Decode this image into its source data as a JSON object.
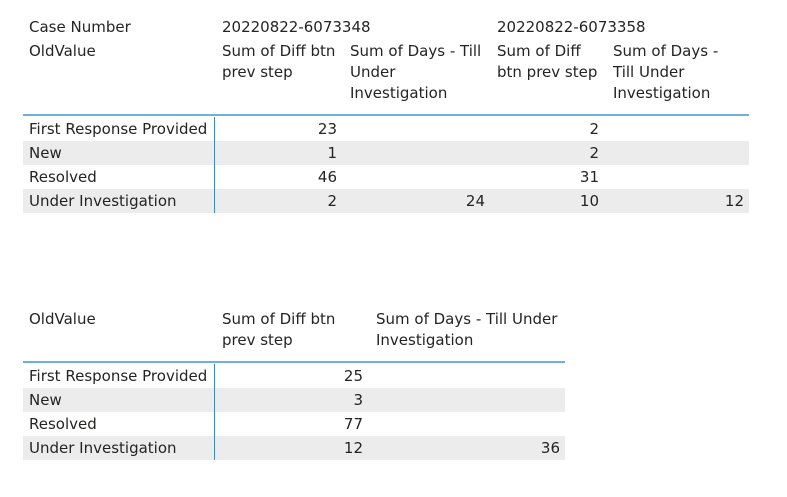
{
  "matrix": {
    "corner_col_label": "Case Number",
    "corner_row_label": "OldValue",
    "cases": [
      {
        "case_number": "20220822-6073348",
        "measures": [
          "Sum of Diff btn prev step",
          "Sum of Days - Till Under Investigation"
        ]
      },
      {
        "case_number": "20220822-6073358",
        "measures": [
          "Sum of Diff btn prev step",
          "Sum of Days - Till Under Investigation"
        ]
      }
    ],
    "rows": [
      {
        "label": "First Response Provided",
        "values": [
          "23",
          "",
          "2",
          ""
        ]
      },
      {
        "label": "New",
        "values": [
          "1",
          "",
          "2",
          ""
        ]
      },
      {
        "label": "Resolved",
        "values": [
          "46",
          "",
          "31",
          ""
        ]
      },
      {
        "label": "Under Investigation",
        "values": [
          "2",
          "24",
          "10",
          "12"
        ]
      }
    ]
  },
  "table": {
    "row_header_label": "OldValue",
    "columns": [
      "Sum of Diff btn prev step",
      "Sum of Days - Till Under Investigation"
    ],
    "rows": [
      {
        "label": "First Response Provided",
        "values": [
          "25",
          ""
        ]
      },
      {
        "label": "New",
        "values": [
          "3",
          ""
        ]
      },
      {
        "label": "Resolved",
        "values": [
          "77",
          ""
        ]
      },
      {
        "label": "Under Investigation",
        "values": [
          "12",
          "36"
        ]
      }
    ]
  },
  "colors": {
    "header_rule": "#6fb1dc",
    "divider": "#3e8ac9",
    "band": "#ececec",
    "text": "#252423"
  }
}
